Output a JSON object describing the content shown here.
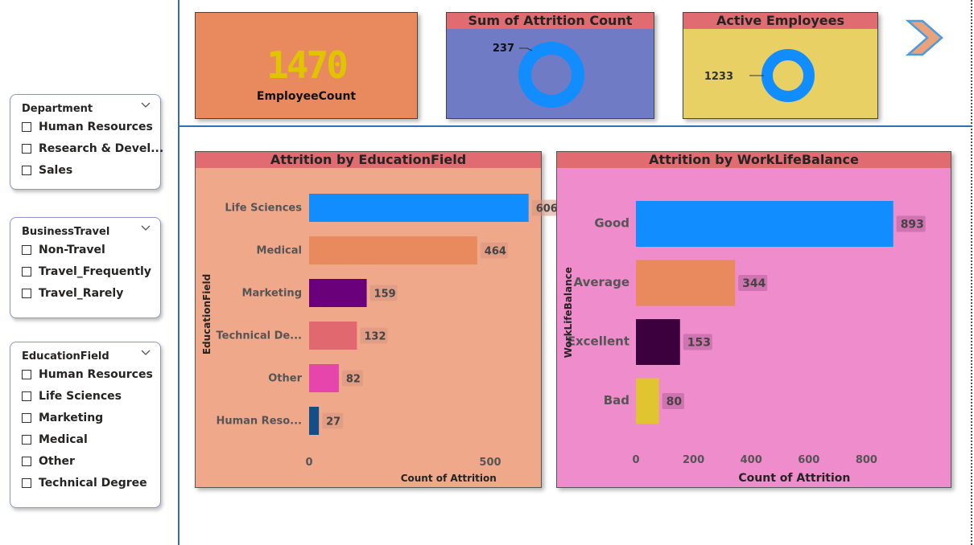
{
  "slicers": [
    {
      "title": "Department",
      "items": [
        "Human Resources",
        "Research & Devel...",
        "Sales"
      ]
    },
    {
      "title": "BusinessTravel",
      "items": [
        "Non-Travel",
        "Travel_Frequently",
        "Travel_Rarely"
      ]
    },
    {
      "title": "EducationField",
      "items": [
        "Human Resources",
        "Life Sciences",
        "Marketing",
        "Medical",
        "Other",
        "Technical Degree"
      ]
    }
  ],
  "cards": {
    "employee_count": {
      "value": "1470",
      "label": "EmployeeCount"
    },
    "attrition": {
      "title": "Sum of Attrition Count",
      "value": "237"
    },
    "active": {
      "title": "Active Employees",
      "value": "1233"
    }
  },
  "colors": {
    "accent": "#118dff",
    "title_bar": "#e06c72",
    "divider": "#2f6fb5"
  },
  "icons": {
    "next": "chevron-right-icon",
    "dropdown": "chevron-down-icon"
  },
  "chart_data": [
    {
      "type": "bar",
      "orientation": "horizontal",
      "title": "Attrition by EducationField",
      "xlabel": "Count of Attrition",
      "ylabel": "EducationField",
      "categories": [
        "Life Sciences",
        "Medical",
        "Marketing",
        "Technical De...",
        "Other",
        "Human Reso..."
      ],
      "values": [
        606,
        464,
        159,
        132,
        82,
        27
      ],
      "colors": [
        "#118dff",
        "#e8895e",
        "#6b007b",
        "#e0686e",
        "#e645ab",
        "#134e87"
      ],
      "xticks": [
        0,
        500
      ],
      "xlim": [
        0,
        700
      ],
      "background": "#f0a88a"
    },
    {
      "type": "bar",
      "orientation": "horizontal",
      "title": "Attrition by WorkLifeBalance",
      "xlabel": "Count of Attrition",
      "ylabel": "WorkLifeBalance",
      "categories": [
        "Good",
        "Average",
        "Excellent",
        "Bad"
      ],
      "values": [
        893,
        344,
        153,
        80
      ],
      "colors": [
        "#118dff",
        "#e8895e",
        "#3c003f",
        "#e0c430"
      ],
      "xticks": [
        0,
        200,
        400,
        600,
        800
      ],
      "xlim": [
        0,
        1000
      ],
      "background": "#ee8ccc"
    }
  ]
}
